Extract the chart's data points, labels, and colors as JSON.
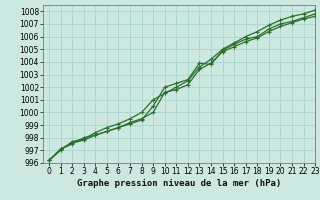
{
  "title": "Graphe pression niveau de la mer (hPa)",
  "bg_color": "#cce8e0",
  "grid_color": "#aad4cc",
  "line_color": "#2d6e2d",
  "xlim": [
    -0.5,
    23
  ],
  "ylim": [
    996,
    1008.5
  ],
  "xticks": [
    0,
    1,
    2,
    3,
    4,
    5,
    6,
    7,
    8,
    9,
    10,
    11,
    12,
    13,
    14,
    15,
    16,
    17,
    18,
    19,
    20,
    21,
    22,
    23
  ],
  "yticks": [
    996,
    997,
    998,
    999,
    1000,
    1001,
    1002,
    1003,
    1004,
    1005,
    1006,
    1007,
    1008
  ],
  "line1_x": [
    0,
    1,
    2,
    3,
    4,
    5,
    6,
    7,
    8,
    9,
    10,
    11,
    12,
    13,
    14,
    15,
    16,
    17,
    18,
    19,
    20,
    21,
    22,
    23
  ],
  "line1_y": [
    996.2,
    997.1,
    997.6,
    997.8,
    998.2,
    998.5,
    998.8,
    999.2,
    999.5,
    1000.0,
    1001.6,
    1001.8,
    1002.2,
    1003.4,
    1003.9,
    1004.8,
    1005.2,
    1005.6,
    1005.9,
    1006.4,
    1006.8,
    1007.1,
    1007.4,
    1007.6
  ],
  "line2_x": [
    0,
    1,
    2,
    3,
    4,
    5,
    6,
    7,
    8,
    9,
    10,
    11,
    12,
    13,
    14,
    15,
    16,
    17,
    18,
    19,
    20,
    21,
    22,
    23
  ],
  "line2_y": [
    996.2,
    997.1,
    997.5,
    998.0,
    998.2,
    998.5,
    998.8,
    999.1,
    999.4,
    1000.5,
    1002.0,
    1002.3,
    1002.6,
    1003.9,
    1003.8,
    1004.9,
    1005.4,
    1005.8,
    1006.0,
    1006.6,
    1007.0,
    1007.2,
    1007.5,
    1007.8
  ],
  "line3_x": [
    0,
    1,
    2,
    3,
    4,
    5,
    6,
    7,
    8,
    9,
    10,
    11,
    12,
    13,
    14,
    15,
    16,
    17,
    18,
    19,
    20,
    21,
    22,
    23
  ],
  "line3_y": [
    996.2,
    997.0,
    997.7,
    997.9,
    998.4,
    998.8,
    999.1,
    999.5,
    1000.0,
    1001.0,
    1001.5,
    1002.0,
    1002.5,
    1003.6,
    1004.2,
    1005.0,
    1005.5,
    1006.0,
    1006.4,
    1006.9,
    1007.3,
    1007.6,
    1007.8,
    1008.1
  ],
  "label_fontsize": 5.5,
  "title_fontsize": 6.5,
  "lw": 0.9,
  "ms": 3.0
}
